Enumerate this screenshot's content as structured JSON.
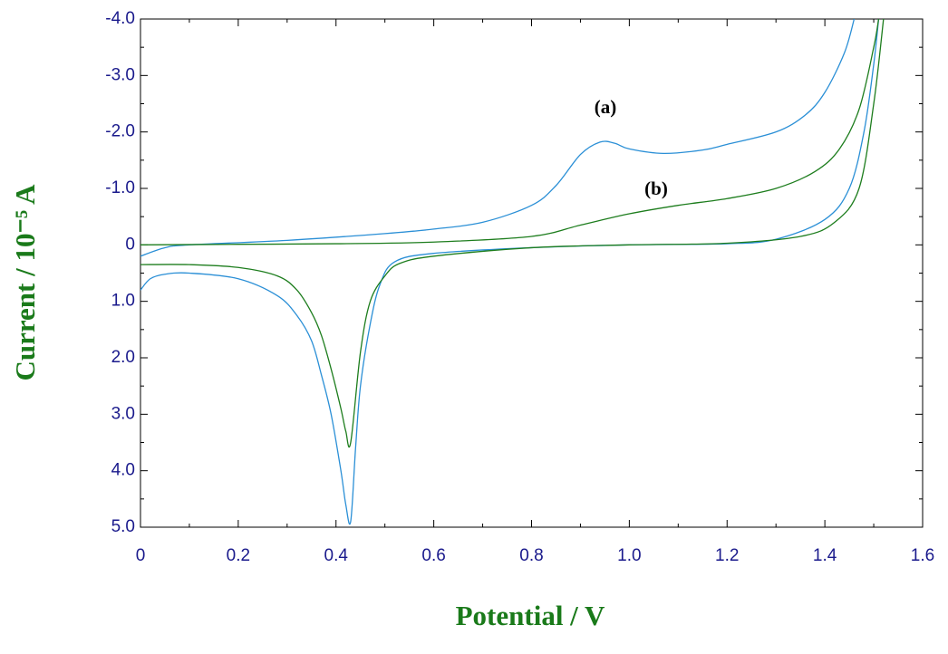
{
  "chart_data": {
    "type": "line",
    "xlabel": "Potential / V",
    "ylabel": "Current / 10⁻⁵ A",
    "annotations": [
      "(a)",
      "(b)"
    ],
    "xlim": [
      0,
      1.6
    ],
    "xticks": [
      0,
      0.2,
      0.4,
      0.6,
      0.8,
      {
        "value": 1,
        "label": "1.0"
      },
      1.2,
      1.4,
      1.6
    ],
    "ylim": [
      -4,
      5
    ],
    "yticks": [
      {
        "value": -4,
        "label": "-4.0"
      },
      {
        "value": -3,
        "label": "-3.0"
      },
      {
        "value": -2,
        "label": "-2.0"
      },
      {
        "value": -1,
        "label": "-1.0"
      },
      0,
      {
        "value": 1,
        "label": "1.0"
      },
      {
        "value": 2,
        "label": "2.0"
      },
      {
        "value": 3,
        "label": "3.0"
      },
      {
        "value": 4,
        "label": "4.0"
      },
      {
        "value": 5,
        "label": "5.0"
      }
    ],
    "y_inverted": true,
    "series": [
      {
        "color": "#2a8fd6",
        "x": [
          0,
          0.05,
          0.1,
          0.3,
          0.5,
          0.6,
          0.7,
          0.8,
          0.85,
          0.9,
          0.94,
          0.97,
          1.0,
          1.07,
          1.15,
          1.2,
          1.3,
          1.36,
          1.4,
          1.44,
          1.46,
          null,
          1.51,
          1.5,
          1.48,
          1.45,
          1.4,
          1.3,
          1.2,
          1.0,
          0.8,
          0.6,
          0.52,
          0.49,
          0.47,
          0.45,
          0.44,
          0.43,
          0.42,
          0.41,
          0.39,
          0.37,
          0.35,
          0.32,
          0.28,
          0.2,
          0.1,
          0.05,
          0.02,
          0
        ],
        "values": [
          0.2,
          0.05,
          0,
          -0.08,
          -0.2,
          -0.28,
          -0.4,
          -0.7,
          -1.05,
          -1.6,
          -1.82,
          -1.8,
          -1.7,
          -1.62,
          -1.68,
          -1.78,
          -2.0,
          -2.3,
          -2.7,
          -3.4,
          -4.0,
          null,
          -4.0,
          -3.2,
          -2.0,
          -1.0,
          -0.45,
          -0.1,
          -0.02,
          0,
          0.05,
          0.15,
          0.3,
          0.7,
          1.4,
          2.5,
          3.6,
          4.9,
          4.6,
          4.0,
          3.0,
          2.3,
          1.7,
          1.25,
          0.9,
          0.6,
          0.5,
          0.52,
          0.6,
          0.8
        ]
      },
      {
        "color": "#1d7d1d",
        "x": [
          0,
          0.2,
          0.4,
          0.6,
          0.8,
          0.9,
          1.0,
          1.1,
          1.2,
          1.3,
          1.38,
          1.43,
          1.47,
          1.5,
          1.51,
          null,
          1.52,
          1.5,
          1.47,
          1.42,
          1.35,
          1.2,
          1.0,
          0.8,
          0.6,
          0.53,
          0.5,
          0.47,
          0.45,
          0.43,
          0.42,
          0.41,
          0.39,
          0.37,
          0.35,
          0.32,
          0.28,
          0.2,
          0.1,
          0
        ],
        "values": [
          0,
          -0.01,
          -0.02,
          -0.05,
          -0.15,
          -0.35,
          -0.55,
          -0.7,
          -0.82,
          -1.0,
          -1.3,
          -1.7,
          -2.4,
          -3.5,
          -4.0,
          null,
          -4.0,
          -2.5,
          -1.0,
          -0.4,
          -0.15,
          -0.03,
          0,
          0.05,
          0.2,
          0.33,
          0.55,
          1.0,
          1.9,
          3.5,
          3.3,
          2.9,
          2.2,
          1.6,
          1.2,
          0.8,
          0.55,
          0.4,
          0.35,
          0.35
        ]
      }
    ]
  }
}
